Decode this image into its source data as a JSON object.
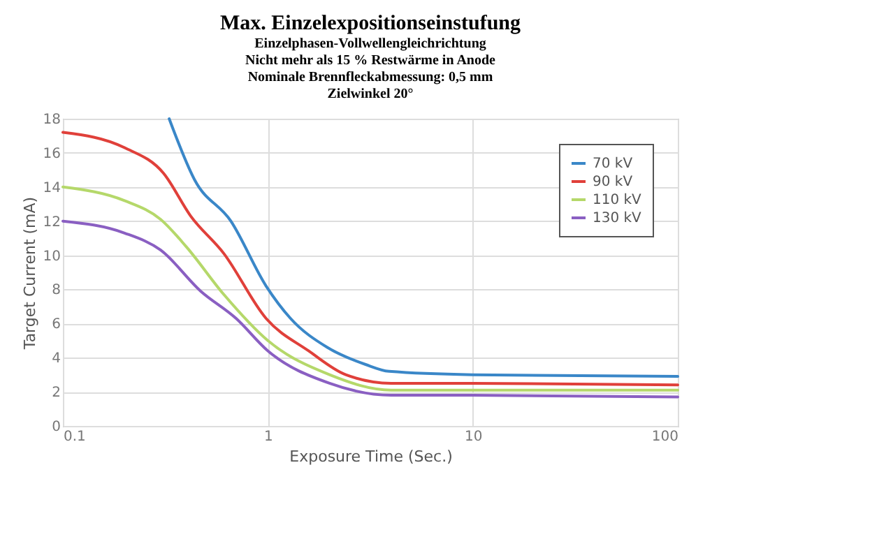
{
  "chart_data": {
    "type": "line",
    "title": "Max. Einzelexpositionseinstufung",
    "subtitle": "Einzelphasen-Vollwellengleichrichtung\nNicht mehr als 15 % Restwärme in Anode\nNominale Brennfleckabmessung: 0,5 mm\nZielwinkel 20°",
    "xlabel": "Exposure Time (Sec.)",
    "ylabel": "Target Current (mA)",
    "log": "x",
    "xlim": [
      0.1,
      100
    ],
    "xticks": [
      0.1,
      1,
      10,
      100
    ],
    "ylim": [
      0,
      18
    ],
    "yticks": [
      0,
      2,
      4,
      6,
      8,
      10,
      12,
      14,
      16,
      18
    ],
    "grid": true,
    "legend": "top right",
    "marker": "none",
    "line_style": "solid",
    "series": [
      {
        "name": "70 kV",
        "color": "#3a87c8",
        "x": [
          0.33,
          0.44,
          0.66,
          0.98,
          1.29,
          1.95,
          3.0,
          3.9,
          10,
          100
        ],
        "values": [
          18,
          14.4,
          12.0,
          8.2,
          6.3,
          4.6,
          3.6,
          3.2,
          3.0,
          2.9
        ]
      },
      {
        "name": "90 kV",
        "color": "#e0403a",
        "x": [
          0.1,
          0.2,
          0.31,
          0.42,
          0.61,
          0.98,
          1.58,
          2.4,
          4,
          10,
          100
        ],
        "values": [
          17.2,
          16.3,
          14.8,
          12.3,
          10.1,
          6.3,
          4.4,
          3.0,
          2.5,
          2.5,
          2.4
        ]
      },
      {
        "name": "110 kV",
        "color": "#b5d86a",
        "x": [
          0.1,
          0.2,
          0.3,
          0.4,
          0.61,
          1,
          2,
          4,
          10,
          100
        ],
        "values": [
          14.0,
          13.2,
          12.1,
          10.5,
          7.7,
          5.0,
          3.0,
          2.1,
          2.1,
          2.1
        ]
      },
      {
        "name": "130 kV",
        "color": "#8a5fc2",
        "x": [
          0.1,
          0.2,
          0.3,
          0.47,
          0.7,
          1,
          2,
          4,
          10,
          100
        ],
        "values": [
          12.0,
          11.3,
          10.3,
          7.9,
          6.3,
          4.4,
          2.5,
          1.8,
          1.8,
          1.7
        ]
      }
    ]
  }
}
